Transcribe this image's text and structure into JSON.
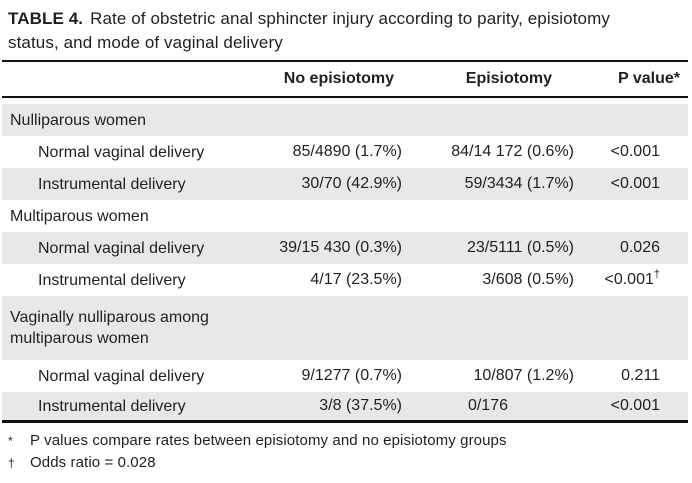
{
  "title": {
    "label": "TABLE 4.",
    "text": "Rate of obstetric anal sphincter injury according to parity, episiotomy\nstatus, and mode of vaginal delivery"
  },
  "columns": {
    "no_episiotomy": "No episiotomy",
    "episiotomy": "Episiotomy",
    "p_value": "P value*"
  },
  "rows": [
    {
      "type": "section",
      "label": "Nulliparous women",
      "no_episiotomy": "",
      "episiotomy": "",
      "p_value": ""
    },
    {
      "type": "data",
      "label": "Normal vaginal delivery",
      "no_episiotomy": "85/4890 (1.7%)",
      "episiotomy": "84/14 172 (0.6%)",
      "p_value": "<0.001"
    },
    {
      "type": "data",
      "label": "Instrumental delivery",
      "no_episiotomy": "30/70 (42.9%)",
      "episiotomy": "59/3434 (1.7%)",
      "p_value": "<0.001"
    },
    {
      "type": "section",
      "label": "Multiparous women",
      "no_episiotomy": "",
      "episiotomy": "",
      "p_value": ""
    },
    {
      "type": "data",
      "label": "Normal vaginal delivery",
      "no_episiotomy": "39/15 430 (0.3%)",
      "episiotomy": "23/5111 (0.5%)",
      "p_value": "0.026"
    },
    {
      "type": "data",
      "label": "Instrumental delivery",
      "no_episiotomy": "4/17 (23.5%)",
      "episiotomy": "3/608 (0.5%)",
      "p_value": "<0.001",
      "p_value_sup": "†"
    },
    {
      "type": "section",
      "label": "Vaginally nulliparous among\nmultiparous women",
      "no_episiotomy": "",
      "episiotomy": "",
      "p_value": ""
    },
    {
      "type": "data",
      "label": "Normal vaginal delivery",
      "no_episiotomy": "9/1277 (0.7%)",
      "episiotomy": "10/807 (1.2%)",
      "p_value": "0.211"
    },
    {
      "type": "data",
      "label": "Instrumental delivery",
      "no_episiotomy": "3/8 (37.5%)",
      "episiotomy": "0/176",
      "p_value": "<0.001"
    }
  ],
  "footnotes": [
    {
      "marker": "*",
      "text": "P values compare rates between episiotomy and no episiotomy groups"
    },
    {
      "marker": "†",
      "text": "Odds ratio = 0.028"
    }
  ],
  "colors": {
    "row_shade": "#e8e8e8",
    "rule": "#111111",
    "text": "#231f20",
    "background": "#ffffff"
  }
}
